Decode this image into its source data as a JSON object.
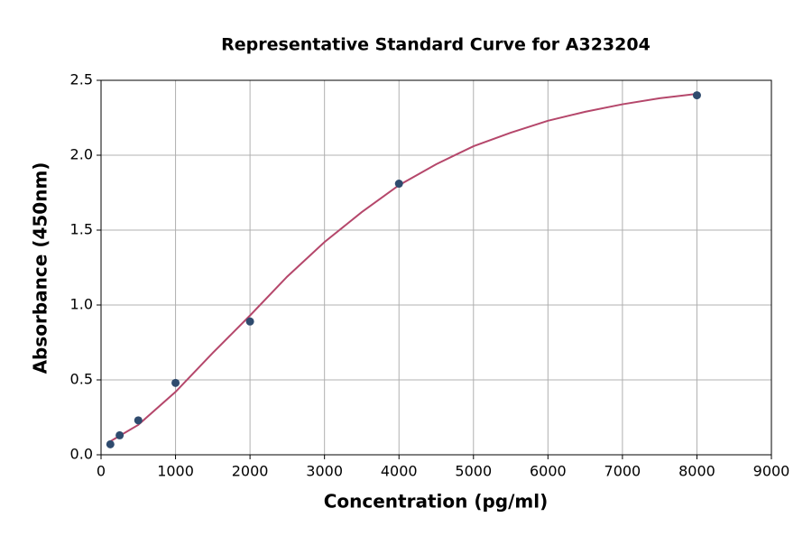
{
  "chart_data": {
    "type": "scatter",
    "title": "Representative Standard Curve for A323204",
    "x_label": "Concentration (pg/ml)",
    "y_label": "Absorbance (450nm)",
    "xlim": [
      0,
      9000
    ],
    "ylim": [
      0,
      2.5
    ],
    "xticks": [
      0,
      1000,
      2000,
      3000,
      4000,
      5000,
      6000,
      7000,
      8000,
      9000
    ],
    "yticks": [
      {
        "value": 0,
        "label": "0.0"
      },
      0.5,
      {
        "value": 1,
        "label": "1.0"
      },
      1.5,
      {
        "value": 2,
        "label": "2.0"
      },
      2.5
    ],
    "grid": true,
    "series": [
      {
        "type": "scatter",
        "color": "#2f4b6e",
        "x": [
          125,
          250,
          500,
          1000,
          2000,
          4000,
          8000
        ],
        "values": [
          0.07,
          0.13,
          0.23,
          0.48,
          0.89,
          1.81,
          2.4
        ]
      },
      {
        "type": "line",
        "color": "#b5476b",
        "x": [
          125,
          500,
          1000,
          1500,
          2000,
          2500,
          3000,
          3500,
          4000,
          4500,
          5000,
          5500,
          6000,
          6500,
          7000,
          7500,
          8000
        ],
        "values": [
          0.09,
          0.2,
          0.42,
          0.68,
          0.93,
          1.19,
          1.42,
          1.62,
          1.8,
          1.94,
          2.06,
          2.15,
          2.23,
          2.29,
          2.34,
          2.38,
          2.41
        ]
      }
    ]
  }
}
